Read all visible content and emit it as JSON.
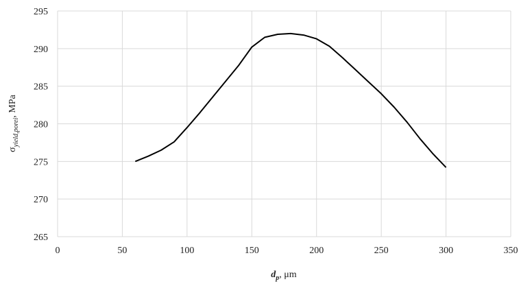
{
  "chart_data": {
    "type": "line",
    "x_label": {
      "symbol": "d",
      "subscript": "p",
      "unit": ", μm"
    },
    "y_label": {
      "symbol": "σ",
      "subscript": "yield,porei",
      "unit": ", MPa"
    },
    "x": [
      60,
      70,
      80,
      90,
      100,
      110,
      120,
      130,
      140,
      150,
      160,
      170,
      180,
      190,
      200,
      210,
      220,
      230,
      240,
      250,
      260,
      270,
      280,
      290,
      300
    ],
    "series": [
      {
        "color": "#000000",
        "values": [
          275,
          275.7,
          276.5,
          277.6,
          279.5,
          281.5,
          283.6,
          285.7,
          287.8,
          290.2,
          291.5,
          291.9,
          292,
          291.8,
          291.3,
          290.3,
          288.8,
          287.2,
          285.6,
          284,
          282.2,
          280.2,
          278,
          276,
          274.2
        ]
      }
    ],
    "xlim": [
      0,
      350
    ],
    "xticks": [
      0,
      50,
      100,
      150,
      200,
      250,
      300,
      350
    ],
    "ylim": [
      265,
      295
    ],
    "yticks": [
      265,
      270,
      275,
      280,
      285,
      290,
      295
    ],
    "grid": true
  }
}
